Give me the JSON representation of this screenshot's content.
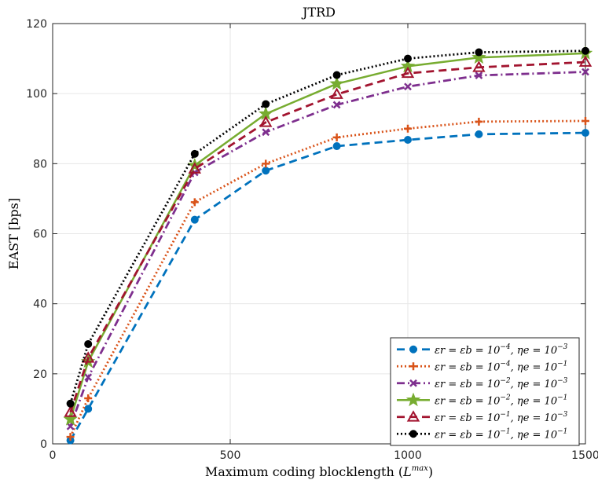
{
  "chart_data": {
    "type": "line",
    "title": "JTRD",
    "xlabel": "Maximum coding blocklength (L^max)",
    "xlabel_main": "Maximum coding blocklength (",
    "xlabel_var": "L",
    "xlabel_sup": "max",
    "xlabel_close": ")",
    "ylabel": "EAST [bps]",
    "xlim": [
      0,
      1500
    ],
    "ylim": [
      0,
      120
    ],
    "xticks": [
      0,
      500,
      1000,
      1500
    ],
    "yticks": [
      0,
      20,
      40,
      60,
      80,
      100,
      120
    ],
    "grid": true,
    "legend_position": "bottom-right",
    "x": [
      50,
      100,
      400,
      600,
      800,
      1000,
      1200,
      1500
    ],
    "series": [
      {
        "name": "εr = εb = 10^−4, ηe = 10^−3",
        "legend_main": "εr = εb = 10",
        "legend_exp1": "−4",
        "legend_mid": ", ηe = 10",
        "legend_exp2": "−3",
        "color": "#0072BD",
        "dash": "10,6",
        "marker": "circle",
        "values": [
          1,
          10,
          64,
          78,
          85,
          86.8,
          88.4,
          88.8
        ]
      },
      {
        "name": "εr = εb = 10^−4, ηe = 10^−1",
        "legend_main": "εr = εb = 10",
        "legend_exp1": "−4",
        "legend_mid": ", ηe = 10",
        "legend_exp2": "−1",
        "color": "#D95319",
        "dash": "2,3",
        "marker": "plus",
        "values": [
          2,
          13,
          69,
          80,
          87.5,
          90,
          92,
          92.2
        ]
      },
      {
        "name": "εr = εb = 10^−2, ηe = 10^−3",
        "legend_main": "εr = εb = 10",
        "legend_exp1": "−2",
        "legend_mid": ", ηe = 10",
        "legend_exp2": "−3",
        "color": "#7E2F8E",
        "dash": "10,4,2,4",
        "marker": "x",
        "values": [
          5,
          19,
          77.5,
          89,
          96.8,
          102,
          105.2,
          106.2
        ]
      },
      {
        "name": "εr = εb = 10^−2, ηe = 10^−1",
        "legend_main": "εr = εb = 10",
        "legend_exp1": "−2",
        "legend_mid": ", ηe = 10",
        "legend_exp2": "−1",
        "color": "#77AC30",
        "dash": "",
        "marker": "star",
        "values": [
          7,
          23.5,
          79.5,
          94.2,
          102.8,
          107.8,
          110.3,
          111.5
        ]
      },
      {
        "name": "εr = εb = 10^−1, ηe = 10^−3",
        "legend_main": "εr = εb = 10",
        "legend_exp1": "−1",
        "legend_mid": ", ηe = 10",
        "legend_exp2": "−3",
        "color": "#A2142F",
        "dash": "10,6",
        "marker": "triangle",
        "values": [
          9,
          24.5,
          78.5,
          91.8,
          99.8,
          105.8,
          107.5,
          109
        ]
      },
      {
        "name": "εr = εb = 10^−1, ηe = 10^−1",
        "legend_main": "εr = εb = 10",
        "legend_exp1": "−1",
        "legend_mid": ", ηe = 10",
        "legend_exp2": "−1",
        "color": "#000000",
        "dash": "2,3",
        "marker": "dot",
        "values": [
          11.5,
          28.5,
          82.8,
          97,
          105.3,
          110,
          111.8,
          112.2
        ]
      }
    ]
  }
}
